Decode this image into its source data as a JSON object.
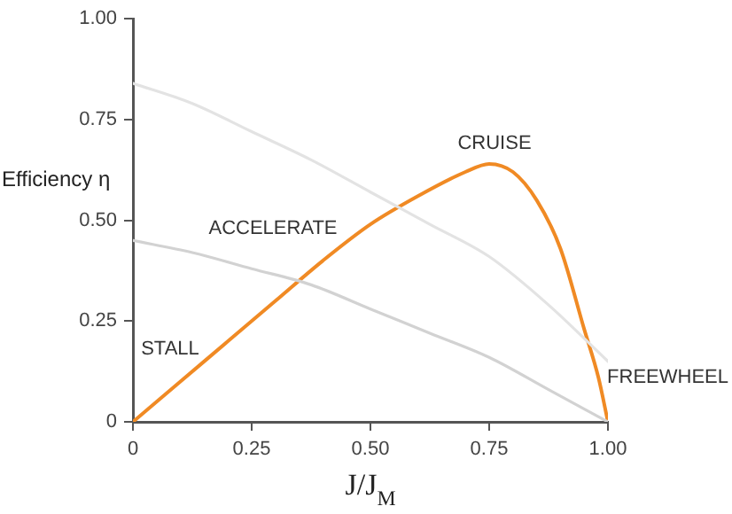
{
  "chart_data": {
    "type": "line",
    "xlabel": "J/J$_{M}$",
    "ylabel": "Efficiency η",
    "xlim": [
      0,
      1
    ],
    "ylim": [
      0,
      1
    ],
    "xticks": [
      0,
      0.25,
      {
        "value": 0.5,
        "label": "0.50"
      },
      0.75,
      {
        "value": 1,
        "label": "1.00"
      }
    ],
    "yticks": [
      0,
      0.25,
      {
        "value": 0.5,
        "label": "0.50"
      },
      0.75,
      {
        "value": 1,
        "label": "1.00"
      }
    ],
    "grid": false,
    "legend": false,
    "marker": "none",
    "line_style": "solid",
    "series": [
      {
        "color": "#e3e3e3",
        "x": [
          0,
          0.125,
          0.25,
          0.375,
          0.5,
          0.625,
          0.75,
          0.875,
          1
        ],
        "values": [
          0.84,
          0.79,
          0.72,
          0.65,
          0.57,
          0.49,
          0.41,
          0.29,
          0.15
        ]
      },
      {
        "color": "#d2d2d2",
        "x": [
          0,
          0.125,
          0.25,
          0.375,
          0.5,
          0.625,
          0.75,
          0.875,
          1
        ],
        "values": [
          0.45,
          0.42,
          0.38,
          0.34,
          0.28,
          0.22,
          0.16,
          0.08,
          0
        ]
      },
      {
        "color": "#f08a24",
        "x": [
          0,
          0.1,
          0.2,
          0.3,
          0.4,
          0.5,
          0.6,
          0.7,
          0.75,
          0.8,
          0.85,
          0.9,
          0.95,
          0.98,
          1
        ],
        "values": [
          0,
          0.1,
          0.2,
          0.3,
          0.4,
          0.49,
          0.56,
          0.62,
          0.64,
          0.62,
          0.55,
          0.43,
          0.23,
          0.11,
          0
        ]
      }
    ],
    "annotations": [
      "STALL",
      "ACCELERATE",
      "CRUISE",
      "FREEWHEEL"
    ]
  }
}
